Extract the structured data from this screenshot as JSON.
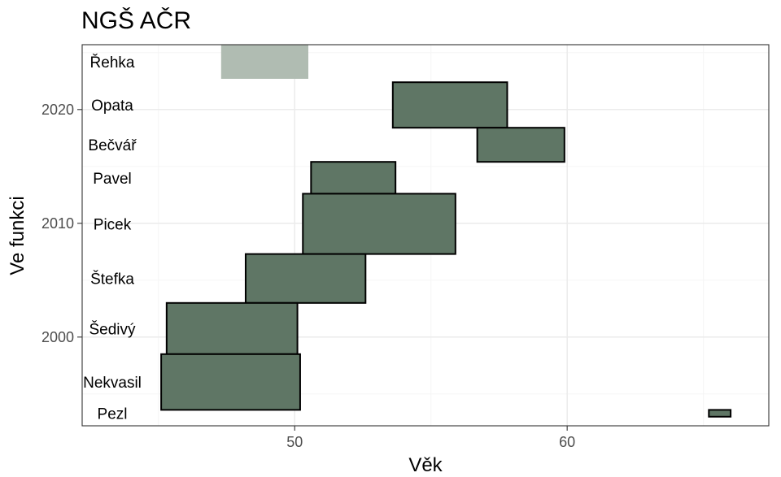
{
  "chart_data": {
    "type": "bar",
    "title": "NGŠ AČR",
    "xlabel": "Věk",
    "ylabel": "Ve funkci",
    "xlim": [
      42.2,
      67.4
    ],
    "ylim": [
      1992.2,
      2025.7
    ],
    "x_ticks": [
      50,
      60
    ],
    "y_ticks": [
      2000,
      2010,
      2020
    ],
    "grid": true,
    "colors": {
      "bar_fill": "#5f7665",
      "bar_fill_current": "#b0bcb2",
      "bar_stroke": "#000000",
      "grid_major": "#ebebeb",
      "grid_minor": "#f5f5f5"
    },
    "series": [
      {
        "name": "Řehka",
        "age_start": 47.3,
        "age_end": 50.5,
        "year_start": 2022.7,
        "year_end": 2025.7,
        "current": true
      },
      {
        "name": "Opata",
        "age_start": 53.6,
        "age_end": 57.8,
        "year_start": 2018.4,
        "year_end": 2022.4,
        "current": false
      },
      {
        "name": "Bečvář",
        "age_start": 56.7,
        "age_end": 59.9,
        "year_start": 2015.4,
        "year_end": 2018.4,
        "current": false
      },
      {
        "name": "Pavel",
        "age_start": 50.6,
        "age_end": 53.7,
        "year_start": 2012.6,
        "year_end": 2015.4,
        "current": false
      },
      {
        "name": "Picek",
        "age_start": 50.3,
        "age_end": 55.9,
        "year_start": 2007.3,
        "year_end": 2012.6,
        "current": false
      },
      {
        "name": "Štefka",
        "age_start": 48.2,
        "age_end": 52.6,
        "year_start": 2003.0,
        "year_end": 2007.3,
        "current": false
      },
      {
        "name": "Šedivý",
        "age_start": 45.3,
        "age_end": 50.1,
        "year_start": 1998.5,
        "year_end": 2003.0,
        "current": false
      },
      {
        "name": "Nekvasil",
        "age_start": 45.1,
        "age_end": 50.2,
        "year_start": 1993.6,
        "year_end": 1998.5,
        "current": false
      },
      {
        "name": "Pezl",
        "age_start": 65.2,
        "age_end": 66.0,
        "year_start": 1993.0,
        "year_end": 1993.6,
        "current": false
      }
    ]
  }
}
